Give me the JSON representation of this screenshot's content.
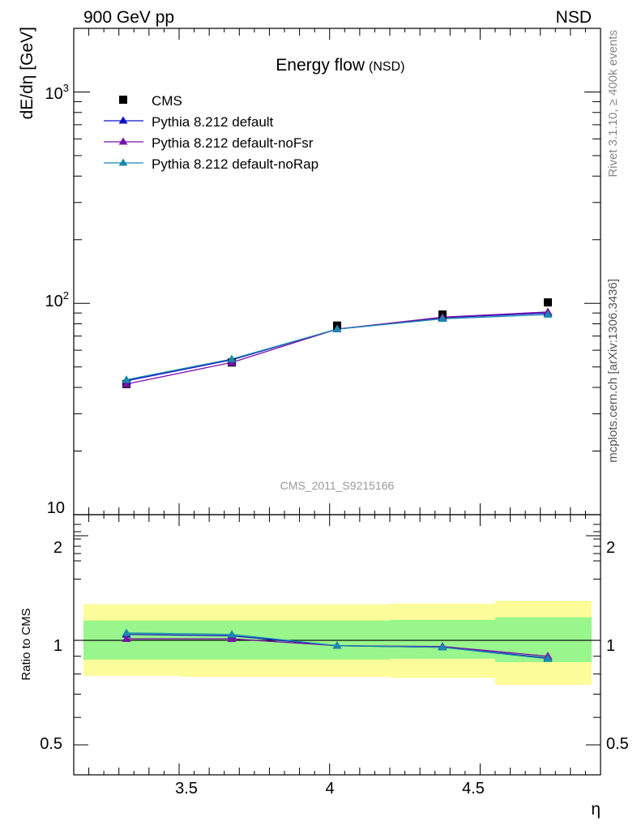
{
  "header": {
    "left": "900 GeV pp",
    "right": "NSD"
  },
  "side_labels": {
    "rivet": "Rivet 3.1.10, ≥ 400k events",
    "ref": "mcplots.cern.ch [arXiv:1306.3436]"
  },
  "chart_data": [
    {
      "type": "line",
      "title": "Energy flow",
      "title_suffix": "(NSD)",
      "watermark": "CMS_2011_S9215166",
      "ylabel": "dE/dη [GeV]",
      "xlabel": "",
      "yscale": "log",
      "xlim": [
        3.15,
        4.9
      ],
      "ylim": [
        10,
        2000
      ],
      "yticks": [
        {
          "value": 1000,
          "label_base": "10",
          "label_exp": "3"
        },
        {
          "value": 100,
          "label_base": "10",
          "label_exp": "2"
        },
        {
          "value": 10,
          "label_base": "10",
          "label_exp": ""
        }
      ],
      "x": [
        3.325,
        3.675,
        4.025,
        4.375,
        4.725
      ],
      "bin_edges": [
        3.15,
        3.5,
        3.85,
        4.2,
        4.55,
        4.9
      ],
      "series": [
        {
          "name": "CMS",
          "marker": "square",
          "color": "#000000",
          "values": [
            41.5,
            52.5,
            78.5,
            88.5,
            101
          ]
        },
        {
          "name": "Pythia 8.212 default",
          "marker": "triangle",
          "color": "#1010c8",
          "values": [
            43,
            54,
            75.5,
            85.5,
            90
          ]
        },
        {
          "name": "Pythia 8.212 default-noFsr",
          "marker": "triangle",
          "color": "#7a10a8",
          "values": [
            41.5,
            52.5,
            75.5,
            86,
            91
          ]
        },
        {
          "name": "Pythia 8.212 default-noRap",
          "marker": "triangle",
          "color": "#1888b0",
          "values": [
            43.5,
            54.5,
            75.5,
            84.5,
            88.5
          ]
        }
      ]
    },
    {
      "type": "line",
      "ylabel": "Ratio to CMS",
      "xlabel": "η",
      "yscale": "log",
      "xlim": [
        3.15,
        4.9
      ],
      "ylim": [
        0.41,
        2.3
      ],
      "yticks": [
        {
          "value": 2,
          "label": "2"
        },
        {
          "value": 1,
          "label": "1"
        },
        {
          "value": 0.5,
          "label": "0.5"
        }
      ],
      "xticks": [
        {
          "value": 3.5,
          "label": "3.5"
        },
        {
          "value": 4,
          "label": "4"
        },
        {
          "value": 4.5,
          "label": "4.5"
        }
      ],
      "x": [
        3.325,
        3.675,
        4.025,
        4.375,
        4.725
      ],
      "bin_edges": [
        3.15,
        3.5,
        3.85,
        4.2,
        4.55,
        4.9
      ],
      "band_colors": {
        "inner": "#99f68c",
        "outer": "#fdfc9a"
      },
      "band_inner": [
        [
          0.88,
          1.14
        ],
        [
          0.88,
          1.14
        ],
        [
          0.88,
          1.14
        ],
        [
          0.885,
          1.145
        ],
        [
          0.865,
          1.165
        ]
      ],
      "band_outer": [
        [
          0.79,
          1.27
        ],
        [
          0.785,
          1.27
        ],
        [
          0.785,
          1.27
        ],
        [
          0.78,
          1.275
        ],
        [
          0.745,
          1.3
        ]
      ],
      "series": [
        {
          "name": "Pythia 8.212 default",
          "color": "#1010c8",
          "values": [
            1.04,
            1.03,
            0.965,
            0.955,
            0.89
          ]
        },
        {
          "name": "Pythia 8.212 default-noFsr",
          "color": "#7a10a8",
          "values": [
            1.01,
            1.01,
            0.965,
            0.96,
            0.9
          ]
        },
        {
          "name": "Pythia 8.212 default-noRap",
          "color": "#1888b0",
          "values": [
            1.05,
            1.04,
            0.965,
            0.955,
            0.885
          ]
        }
      ]
    }
  ]
}
